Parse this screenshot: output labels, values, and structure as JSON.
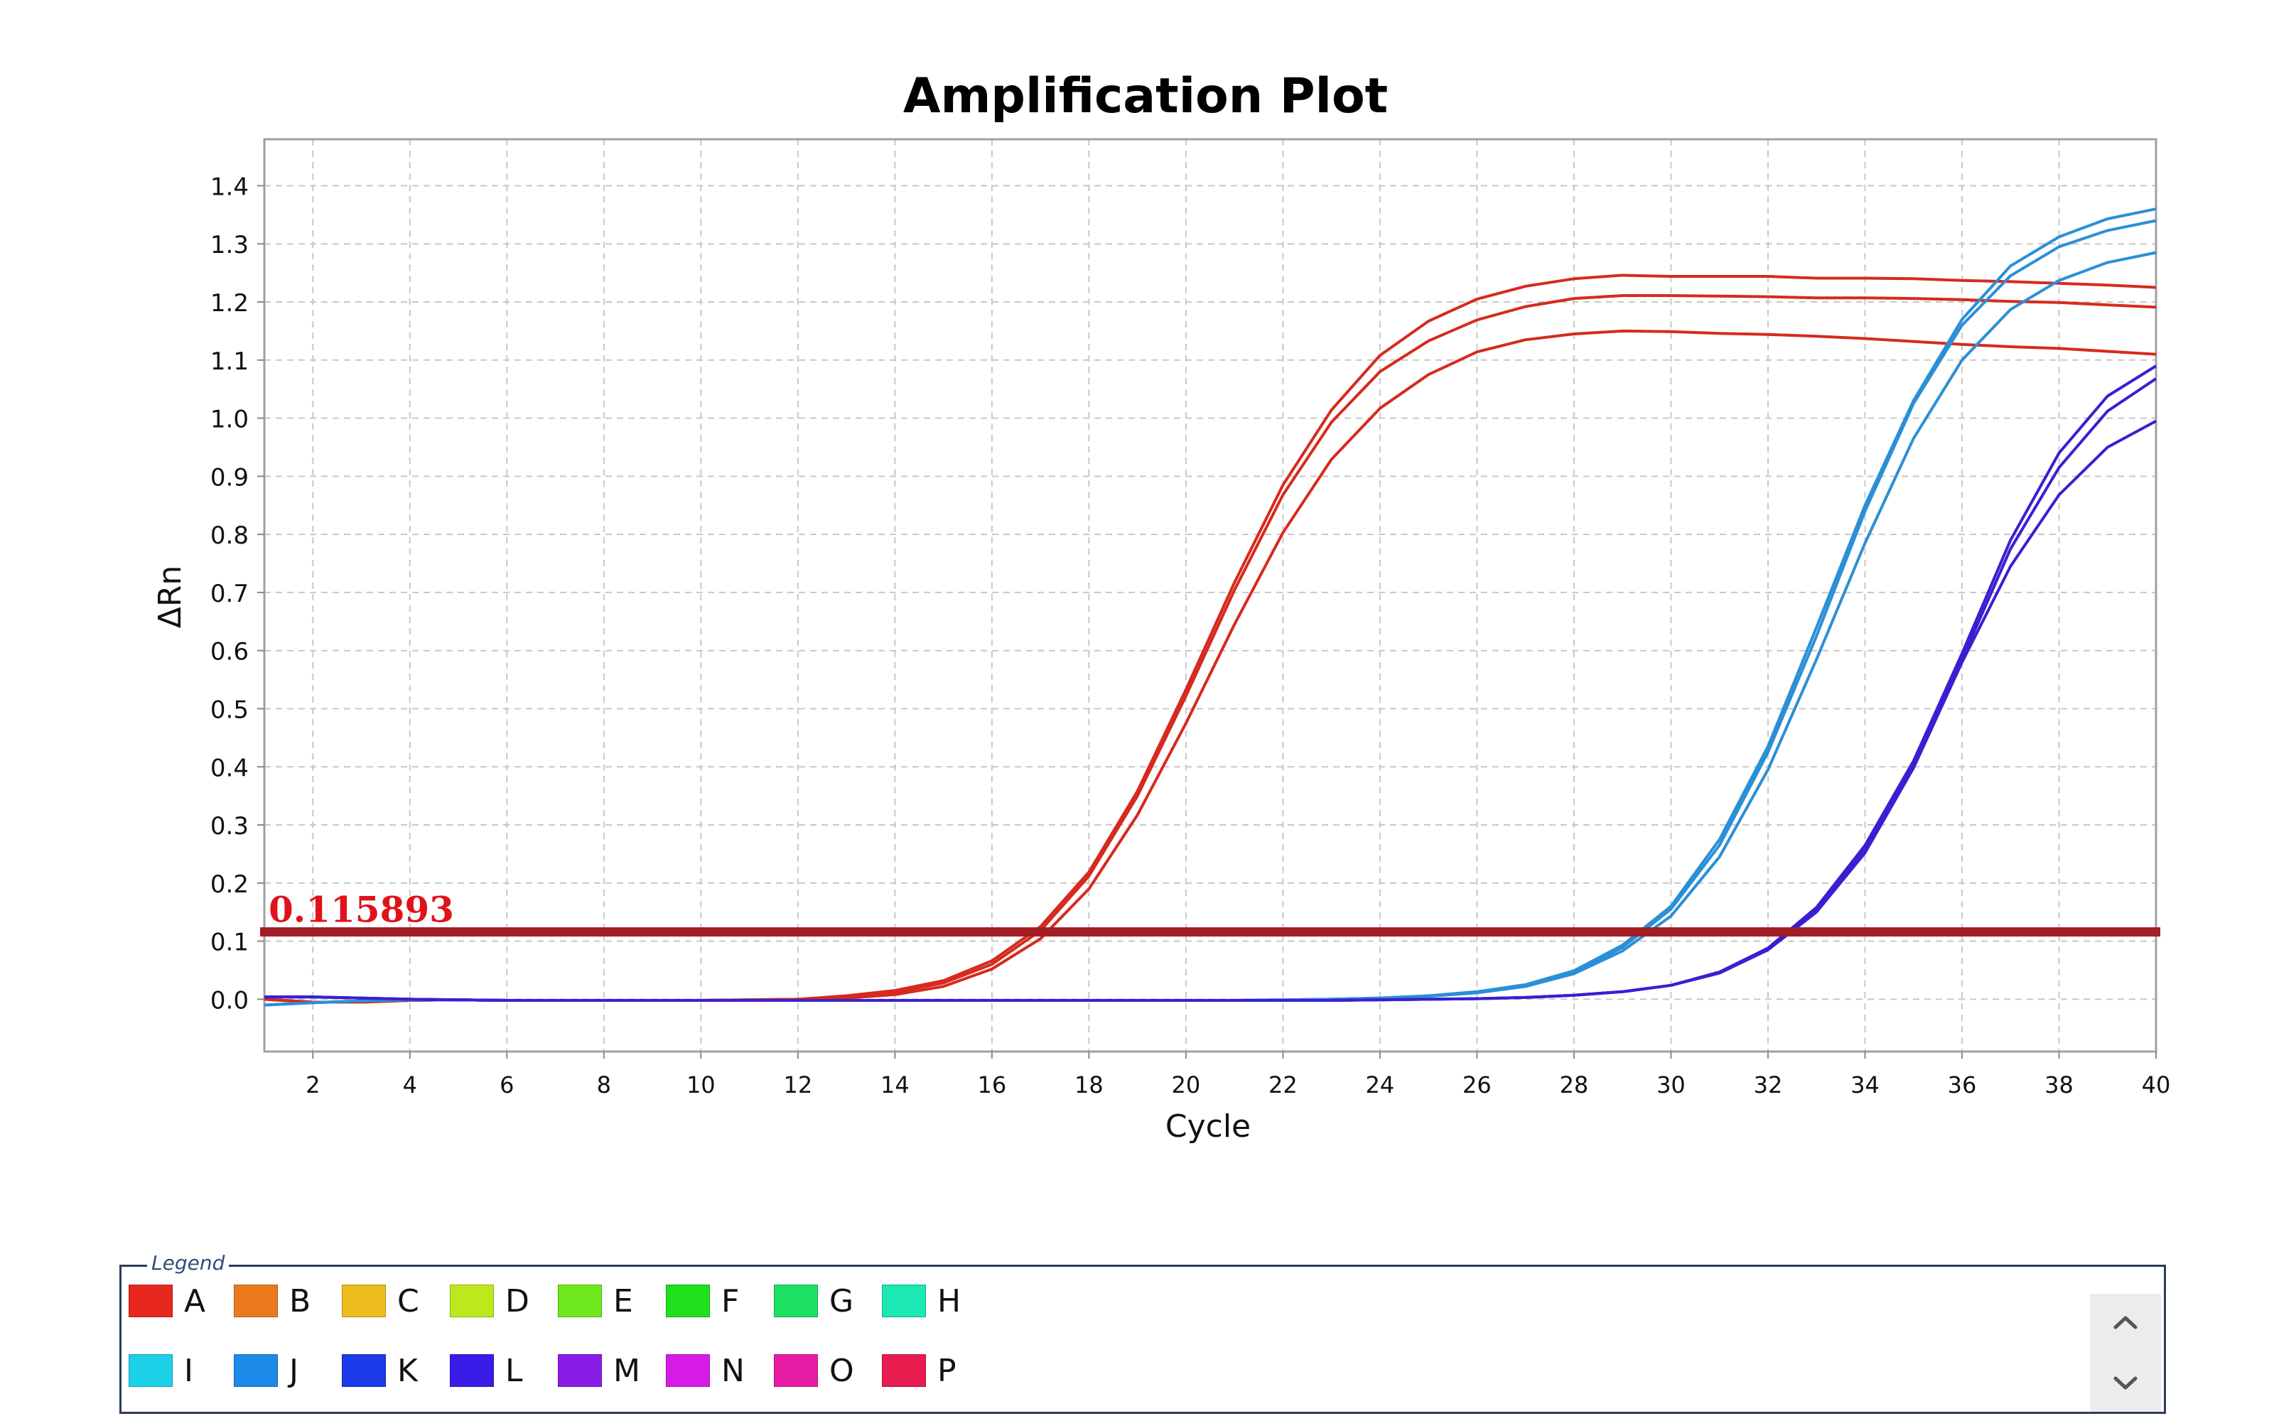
{
  "chart_data": {
    "type": "line",
    "title": "Amplification Plot",
    "xlabel": "Cycle",
    "ylabel": "ΔRn",
    "xlim": [
      1,
      40
    ],
    "ylim": [
      -0.09,
      1.48
    ],
    "xticks": [
      2,
      4,
      6,
      8,
      10,
      12,
      14,
      16,
      18,
      20,
      22,
      24,
      26,
      28,
      30,
      32,
      34,
      36,
      38,
      40
    ],
    "yticks": [
      0.0,
      0.1,
      0.2,
      0.3,
      0.4,
      0.5,
      0.6,
      0.7,
      0.8,
      0.9,
      1.0,
      1.1,
      1.2,
      1.3,
      1.4
    ],
    "grid": true,
    "threshold": {
      "value": 0.115893,
      "label": "0.115893",
      "color": "#a31d24"
    },
    "x": [
      1,
      2,
      3,
      4,
      5,
      6,
      7,
      8,
      9,
      10,
      11,
      12,
      13,
      14,
      15,
      16,
      17,
      18,
      19,
      20,
      21,
      22,
      23,
      24,
      25,
      26,
      27,
      28,
      29,
      30,
      31,
      32,
      33,
      34,
      35,
      36,
      37,
      38,
      39,
      40
    ],
    "series": [
      {
        "color": "#d62a1e",
        "values": [
          0.0,
          -0.005,
          -0.005,
          -0.002,
          -0.001,
          -0.002,
          -0.002,
          -0.002,
          -0.002,
          -0.002,
          -0.001,
          0.0,
          0.006,
          0.015,
          0.032,
          0.066,
          0.125,
          0.219,
          0.358,
          0.533,
          0.717,
          0.885,
          1.014,
          1.108,
          1.167,
          1.205,
          1.227,
          1.24,
          1.246,
          1.244,
          1.244,
          1.244,
          1.241,
          1.241,
          1.24,
          1.237,
          1.235,
          1.232,
          1.229,
          1.225
        ]
      },
      {
        "color": "#d62a1e",
        "values": [
          0.0,
          -0.005,
          -0.005,
          -0.002,
          -0.001,
          -0.002,
          -0.002,
          -0.002,
          -0.002,
          -0.002,
          -0.001,
          0.0,
          0.004,
          0.012,
          0.028,
          0.06,
          0.118,
          0.212,
          0.35,
          0.522,
          0.704,
          0.868,
          0.993,
          1.08,
          1.133,
          1.169,
          1.192,
          1.206,
          1.211,
          1.211,
          1.21,
          1.209,
          1.207,
          1.207,
          1.206,
          1.204,
          1.201,
          1.199,
          1.195,
          1.191
        ]
      },
      {
        "color": "#d62a1e",
        "values": [
          0.0,
          -0.005,
          -0.005,
          -0.002,
          -0.001,
          -0.002,
          -0.002,
          -0.002,
          -0.002,
          -0.002,
          -0.001,
          0.0,
          0.002,
          0.008,
          0.022,
          0.052,
          0.104,
          0.19,
          0.317,
          0.475,
          0.645,
          0.803,
          0.929,
          1.017,
          1.075,
          1.114,
          1.135,
          1.145,
          1.15,
          1.149,
          1.146,
          1.144,
          1.141,
          1.137,
          1.132,
          1.127,
          1.123,
          1.12,
          1.115,
          1.11
        ]
      },
      {
        "color": "#2b8fd6",
        "values": [
          -0.01,
          -0.006,
          -0.003,
          -0.001,
          -0.001,
          -0.002,
          -0.002,
          -0.002,
          -0.002,
          -0.002,
          -0.002,
          -0.002,
          -0.002,
          -0.002,
          -0.002,
          -0.002,
          -0.002,
          -0.002,
          -0.002,
          -0.002,
          -0.002,
          -0.001,
          0.0,
          0.002,
          0.006,
          0.013,
          0.025,
          0.049,
          0.093,
          0.16,
          0.275,
          0.435,
          0.64,
          0.85,
          1.03,
          1.17,
          1.262,
          1.312,
          1.343,
          1.36
        ]
      },
      {
        "color": "#2b8fd6",
        "values": [
          -0.01,
          -0.006,
          -0.003,
          -0.001,
          -0.001,
          -0.002,
          -0.002,
          -0.002,
          -0.002,
          -0.002,
          -0.002,
          -0.002,
          -0.002,
          -0.002,
          -0.002,
          -0.002,
          -0.002,
          -0.002,
          -0.002,
          -0.002,
          -0.002,
          -0.001,
          0.0,
          0.002,
          0.006,
          0.012,
          0.024,
          0.047,
          0.089,
          0.155,
          0.265,
          0.425,
          0.625,
          0.84,
          1.025,
          1.16,
          1.245,
          1.295,
          1.323,
          1.34
        ]
      },
      {
        "color": "#2b8fd6",
        "values": [
          -0.01,
          -0.006,
          -0.003,
          -0.001,
          -0.001,
          -0.002,
          -0.002,
          -0.002,
          -0.002,
          -0.002,
          -0.002,
          -0.002,
          -0.002,
          -0.002,
          -0.002,
          -0.002,
          -0.002,
          -0.002,
          -0.002,
          -0.002,
          -0.002,
          -0.001,
          0.0,
          0.002,
          0.005,
          0.011,
          0.022,
          0.044,
          0.083,
          0.143,
          0.245,
          0.395,
          0.585,
          0.785,
          0.965,
          1.1,
          1.187,
          1.237,
          1.268,
          1.285
        ]
      },
      {
        "color": "#3a1fd2",
        "values": [
          0.004,
          0.004,
          0.002,
          0.0,
          -0.001,
          -0.002,
          -0.002,
          -0.002,
          -0.002,
          -0.002,
          -0.002,
          -0.002,
          -0.002,
          -0.002,
          -0.002,
          -0.002,
          -0.002,
          -0.002,
          -0.002,
          -0.002,
          -0.002,
          -0.002,
          -0.002,
          -0.001,
          0.0,
          0.001,
          0.003,
          0.007,
          0.013,
          0.024,
          0.047,
          0.088,
          0.158,
          0.265,
          0.41,
          0.595,
          0.79,
          0.94,
          1.038,
          1.09
        ]
      },
      {
        "color": "#3a1fd2",
        "values": [
          0.004,
          0.004,
          0.002,
          0.0,
          -0.001,
          -0.002,
          -0.002,
          -0.002,
          -0.002,
          -0.002,
          -0.002,
          -0.002,
          -0.002,
          -0.002,
          -0.002,
          -0.002,
          -0.002,
          -0.002,
          -0.002,
          -0.002,
          -0.002,
          -0.002,
          -0.002,
          -0.001,
          0.0,
          0.001,
          0.003,
          0.007,
          0.013,
          0.024,
          0.046,
          0.087,
          0.155,
          0.26,
          0.405,
          0.585,
          0.775,
          0.915,
          1.012,
          1.068
        ]
      },
      {
        "color": "#3a1fd2",
        "values": [
          0.004,
          0.004,
          0.002,
          0.0,
          -0.001,
          -0.002,
          -0.002,
          -0.002,
          -0.002,
          -0.002,
          -0.002,
          -0.002,
          -0.002,
          -0.002,
          -0.002,
          -0.002,
          -0.002,
          -0.002,
          -0.002,
          -0.002,
          -0.002,
          -0.002,
          -0.002,
          -0.001,
          0.0,
          0.001,
          0.003,
          0.007,
          0.013,
          0.024,
          0.045,
          0.085,
          0.15,
          0.252,
          0.398,
          0.58,
          0.745,
          0.868,
          0.95,
          0.995
        ]
      }
    ]
  },
  "legend": {
    "title": "Legend",
    "items": [
      {
        "label": "A",
        "color": "#e8281e"
      },
      {
        "label": "B",
        "color": "#ec7a1c"
      },
      {
        "label": "C",
        "color": "#ecbd1c"
      },
      {
        "label": "D",
        "color": "#bde81c"
      },
      {
        "label": "E",
        "color": "#6ee81c"
      },
      {
        "label": "F",
        "color": "#20e01c"
      },
      {
        "label": "G",
        "color": "#1ce062"
      },
      {
        "label": "H",
        "color": "#1ce8b4"
      },
      {
        "label": "I",
        "color": "#1cd0e8"
      },
      {
        "label": "J",
        "color": "#1c8ae8"
      },
      {
        "label": "K",
        "color": "#1c3ae8"
      },
      {
        "label": "L",
        "color": "#3a1ce8"
      },
      {
        "label": "M",
        "color": "#8a1ce8"
      },
      {
        "label": "N",
        "color": "#d81ce8"
      },
      {
        "label": "O",
        "color": "#e81ca4"
      },
      {
        "label": "P",
        "color": "#e81c4e"
      }
    ],
    "scroll_up_icon": "chevron-up-icon",
    "scroll_down_icon": "chevron-down-icon"
  }
}
